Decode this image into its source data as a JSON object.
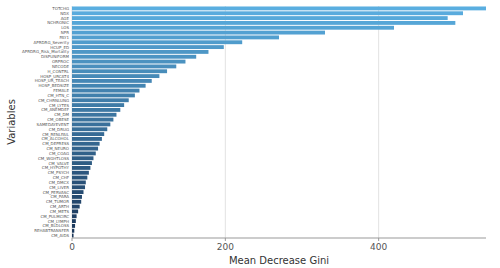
{
  "chart_data": {
    "type": "bar",
    "orientation": "horizontal",
    "categories": [
      "CM_AIDS",
      "REHABTRANSFER",
      "CM_BLDLOSS",
      "CM_LYMPH",
      "CM_PULMCIRC",
      "CM_METS",
      "CM_ARTH",
      "CM_TUMOR",
      "CM_PARA",
      "CM_PERVASC",
      "CM_LIVER",
      "CM_DMCX",
      "CM_CHF",
      "CM_PSYCH",
      "CM_HYPOTHY",
      "CM_VALVE",
      "CM_WGHTLOSS",
      "CM_COAG",
      "CM_NEURO",
      "CM_DEPRESS",
      "CM_ALCOHOL",
      "CM_RENLFAIL",
      "CM_DRUG",
      "SAMEDAYEVENT",
      "CM_OBESE",
      "CM_DM",
      "CM_ANEMDEF",
      "CM_LYTES",
      "CM_CHRNLUNG",
      "CM_HTN_C",
      "FEMALE",
      "HOSP_BEDSIZE",
      "HOSP_UR_TEACH",
      "HOSP_URCAT4",
      "H_CONTRL",
      "NECODE",
      "ORPROC",
      "DISPUNIFORM",
      "APRDRG_Risk_Mortality",
      "HCUP_ED",
      "APRDRG_Severity",
      "PAY1",
      "NPR",
      "LOS",
      "NCHRONIC",
      "AGE",
      "NDX",
      "TOTCHG"
    ],
    "values": [
      2,
      3,
      4,
      5,
      6,
      8,
      10,
      12,
      13,
      15,
      17,
      18,
      20,
      22,
      24,
      26,
      28,
      31,
      34,
      36,
      39,
      42,
      46,
      50,
      54,
      58,
      63,
      68,
      74,
      82,
      88,
      96,
      104,
      114,
      124,
      136,
      148,
      162,
      178,
      198,
      222,
      270,
      330,
      420,
      500,
      490,
      510,
      540
    ],
    "colors": [
      "#1a3558",
      "#1b385b",
      "#1d3a5e",
      "#1e3d61",
      "#1f3f64",
      "#214266",
      "#224469",
      "#24476c",
      "#254a6f",
      "#264c72",
      "#284f75",
      "#295178",
      "#2a547b",
      "#2c567e",
      "#2d5981",
      "#2e5c83",
      "#305e86",
      "#316189",
      "#33638c",
      "#34668f",
      "#356892",
      "#376b95",
      "#386e98",
      "#39709b",
      "#3b739d",
      "#3c75a0",
      "#3d78a3",
      "#3f7ba6",
      "#407da9",
      "#4180ac",
      "#4382af",
      "#4485b2",
      "#4687b5",
      "#478ab7",
      "#488dba",
      "#4a8fbd",
      "#4b92c0",
      "#4c94c3",
      "#4e97c6",
      "#4f99c9",
      "#509ccc",
      "#529fcf",
      "#53a1d2",
      "#55a4d4",
      "#56a6d7",
      "#57a9da",
      "#59abdd",
      "#5aaee0"
    ],
    "xlabel": "Mean Decrease Gini",
    "ylabel": "Variables",
    "xlim": [
      0,
      540
    ],
    "xticks": [
      0,
      200,
      400
    ],
    "grid": true
  }
}
